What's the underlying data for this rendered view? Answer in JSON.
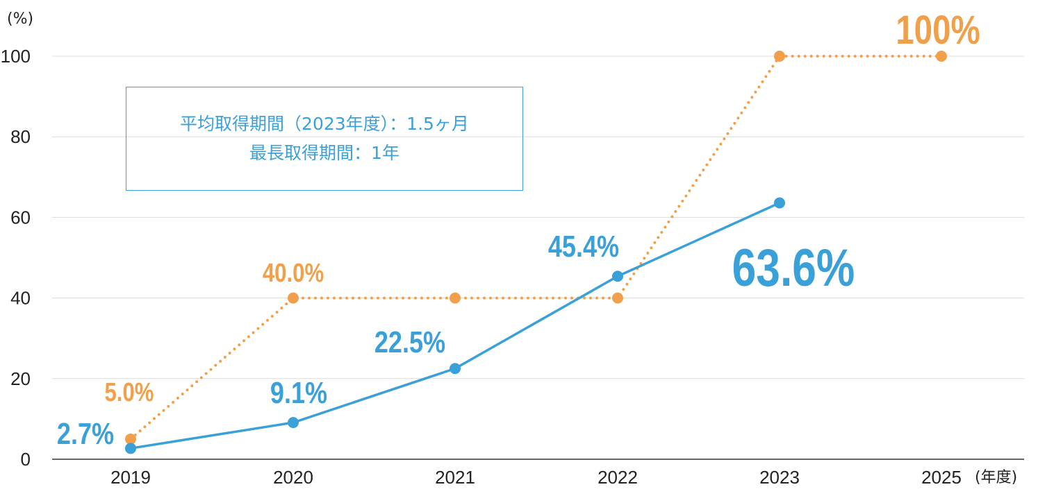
{
  "chart_data": {
    "type": "line",
    "y_unit": "(%)",
    "x_unit": "(年度)",
    "categories": [
      "2019",
      "2020",
      "2021",
      "2022",
      "2023",
      "2025"
    ],
    "ylim": [
      0,
      100
    ],
    "yticks": [
      0,
      20,
      40,
      60,
      80,
      100
    ],
    "grid": true,
    "series": [
      {
        "color": "#f0a04b",
        "style": "dotted",
        "x": [
          "2019",
          "2020",
          "2021",
          "2022",
          "2023",
          "2025"
        ],
        "values": [
          5.0,
          40.0,
          40.0,
          40.0,
          100,
          100
        ],
        "labels": [
          "5.0%",
          "40.0%",
          "",
          "",
          "",
          "100%"
        ]
      },
      {
        "color": "#3aa0d8",
        "style": "solid",
        "x": [
          "2019",
          "2020",
          "2021",
          "2022",
          "2023"
        ],
        "values": [
          2.7,
          9.1,
          22.5,
          45.4,
          63.6
        ],
        "labels": [
          "2.7%",
          "9.1%",
          "22.5%",
          "45.4%",
          "63.6%"
        ]
      }
    ]
  },
  "note": {
    "line1": "平均取得期間（2023年度）：1.5ヶ月",
    "line2": "最長取得期間：1年"
  }
}
